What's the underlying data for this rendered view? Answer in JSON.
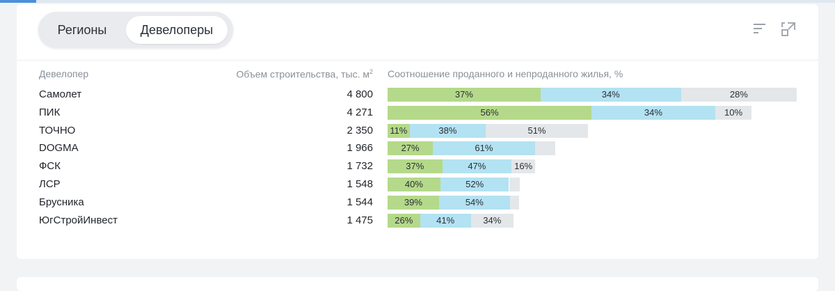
{
  "tabs": [
    {
      "label": "Регионы",
      "active": false
    },
    {
      "label": "Девелоперы",
      "active": true
    }
  ],
  "icons": {
    "sort": "sort-lines-icon",
    "expand": "expand-window-icon"
  },
  "colors": {
    "sold": "#b5d98a",
    "unsold": "#b3e2f2",
    "rest": "#e4e7e9"
  },
  "table": {
    "headers": {
      "developer": "Девелопер",
      "volume": "Объем строительства, тыс. м",
      "volume_unit_sup": "2",
      "ratio": "Соотношение проданного и непроданного жилья, %"
    }
  },
  "chart_data": {
    "type": "bar",
    "stacked": true,
    "orientation": "horizontal",
    "title": "Соотношение проданного и непроданного жилья, %",
    "categories": [
      "Самолет",
      "ПИК",
      "ТОЧНО",
      "DOGMA",
      "ФСК",
      "ЛСР",
      "Брусника",
      "ЮгСтройИнвест"
    ],
    "volume": [
      4800,
      4271,
      2350,
      1966,
      1732,
      1548,
      1544,
      1475
    ],
    "volume_labels": [
      "4 800",
      "4 271",
      "2 350",
      "1 966",
      "1 732",
      "1 548",
      "1 544",
      "1 475"
    ],
    "series": [
      {
        "name": "sold",
        "values": [
          37,
          56,
          11,
          27,
          37,
          40,
          39,
          26
        ],
        "labels": [
          "37%",
          "56%",
          "11%",
          "27%",
          "37%",
          "40%",
          "39%",
          "26%"
        ]
      },
      {
        "name": "unsold",
        "values": [
          34,
          34,
          38,
          61,
          47,
          52,
          54,
          41
        ],
        "labels": [
          "34%",
          "34%",
          "38%",
          "61%",
          "47%",
          "52%",
          "54%",
          "41%"
        ]
      },
      {
        "name": "rest",
        "values": [
          28,
          10,
          51,
          12,
          16,
          8,
          7,
          34
        ],
        "labels": [
          "28%",
          "10%",
          "51%",
          "",
          "16%",
          "",
          "",
          "34%"
        ]
      }
    ]
  }
}
